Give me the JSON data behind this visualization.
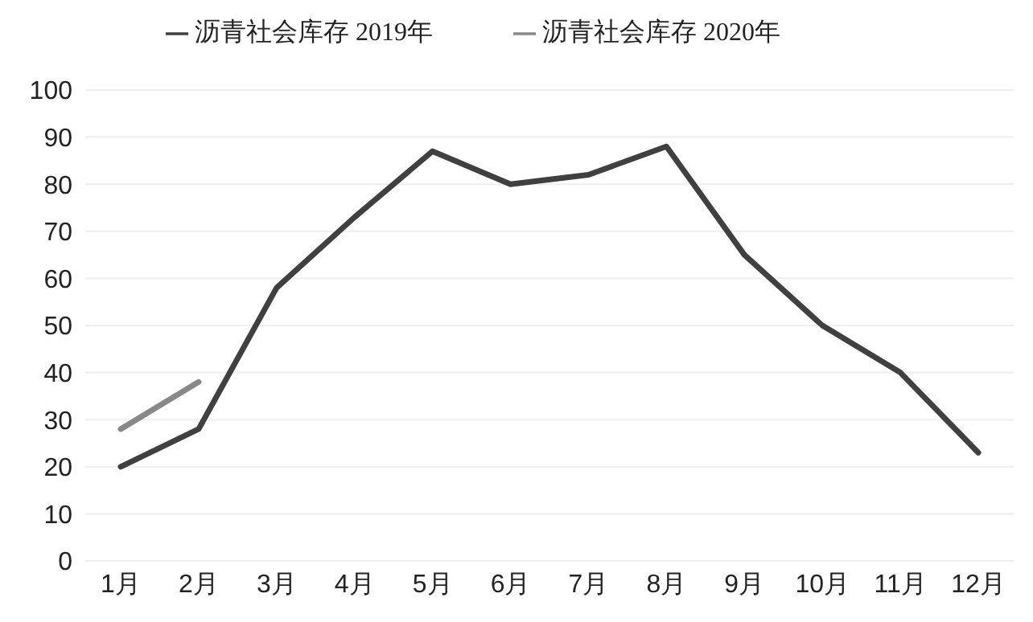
{
  "chart_data": {
    "type": "line",
    "categories": [
      "1月",
      "2月",
      "3月",
      "4月",
      "5月",
      "6月",
      "7月",
      "8月",
      "9月",
      "10月",
      "11月",
      "12月"
    ],
    "series": [
      {
        "name": "沥青社会库存 2019年",
        "color": "#404040",
        "values": [
          20,
          28,
          58,
          73,
          87,
          80,
          82,
          88,
          65,
          50,
          40,
          23
        ]
      },
      {
        "name": "沥青社会库存 2020年",
        "color": "#888888",
        "values": [
          28,
          38,
          null,
          null,
          null,
          null,
          null,
          null,
          null,
          null,
          null,
          null
        ]
      }
    ],
    "ylim": [
      0,
      100
    ],
    "yticks": [
      0,
      10,
      20,
      30,
      40,
      50,
      60,
      70,
      80,
      90,
      100
    ],
    "grid": "y",
    "legend": "top",
    "marker": "none",
    "line_style": "solid"
  }
}
